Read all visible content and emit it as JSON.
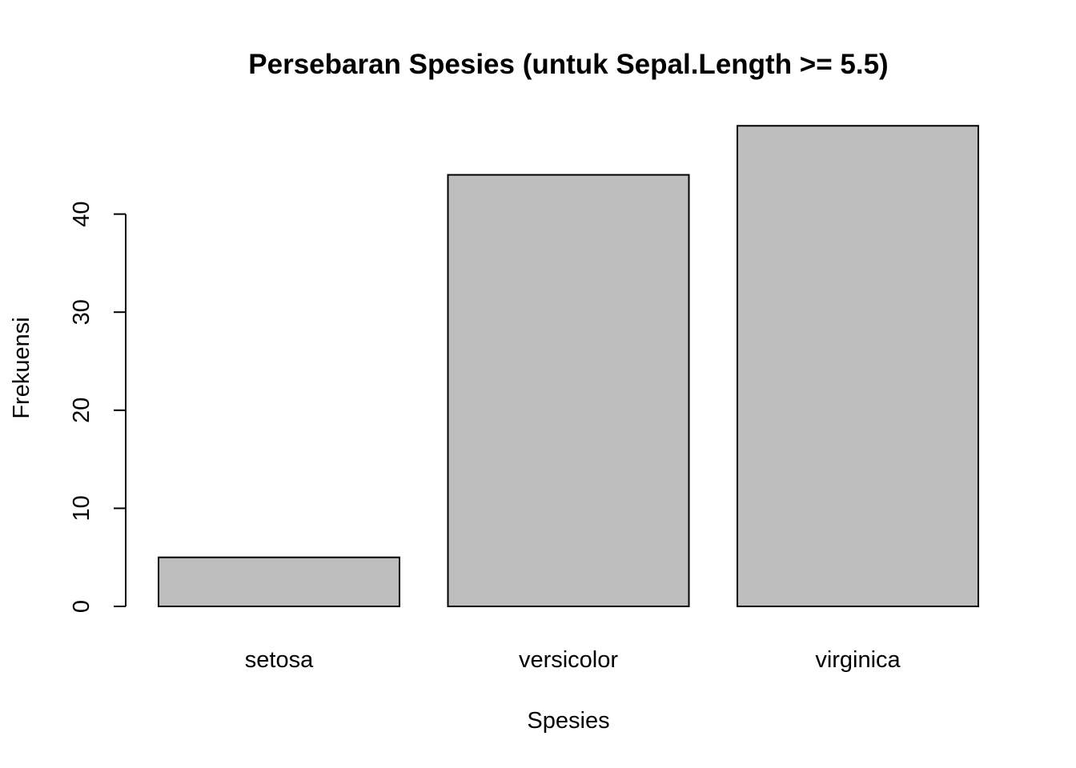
{
  "chart_data": {
    "type": "bar",
    "title": "Persebaran Spesies (untuk Sepal.Length >= 5.5)",
    "xlabel": "Spesies",
    "ylabel": "Frekuensi",
    "categories": [
      "setosa",
      "versicolor",
      "virginica"
    ],
    "values": [
      5,
      44,
      49
    ],
    "yticks": [
      0,
      10,
      20,
      30,
      40
    ],
    "ylim": [
      0,
      49
    ],
    "bar_color": "#bebebe",
    "bar_border_color": "#000000",
    "grid": false,
    "legend": "none"
  }
}
